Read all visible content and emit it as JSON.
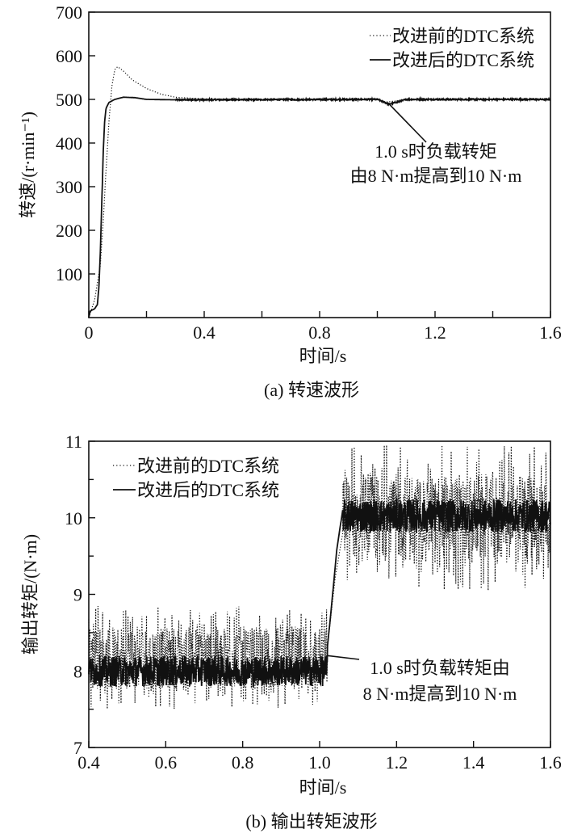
{
  "chart_data": [
    {
      "type": "line",
      "caption": "(a) 转速波形",
      "xlabel": "时间/s",
      "ylabel": "转速/(r·min⁻¹)",
      "xlim": [
        0,
        1.6
      ],
      "ylim": [
        0,
        700
      ],
      "xticks": [
        "0",
        "0.4",
        "0.8",
        "1.2",
        "1.6"
      ],
      "xtick_values": [
        0,
        0.4,
        0.8,
        1.2,
        1.6
      ],
      "yticks": [
        "100",
        "200",
        "300",
        "400",
        "500",
        "600",
        "700"
      ],
      "ytick_values": [
        100,
        200,
        300,
        400,
        500,
        600,
        700
      ],
      "legend_position": "top-right",
      "series": [
        {
          "name": "改进前的DTC系统",
          "style": "dotted",
          "x": [
            0,
            0.02,
            0.04,
            0.05,
            0.06,
            0.07,
            0.08,
            0.09,
            0.1,
            0.12,
            0.15,
            0.2,
            0.25,
            0.3,
            0.4,
            1.0,
            1.03,
            1.06,
            1.1,
            1.6
          ],
          "y": [
            0,
            40,
            120,
            220,
            340,
            450,
            530,
            568,
            575,
            565,
            545,
            525,
            512,
            505,
            501,
            500,
            494,
            496,
            500,
            500
          ]
        },
        {
          "name": "改进后的DTC系统",
          "style": "solid",
          "x": [
            0,
            0.005,
            0.02,
            0.03,
            0.035,
            0.04,
            0.045,
            0.05,
            0.055,
            0.06,
            0.07,
            0.09,
            0.12,
            0.16,
            0.2,
            0.3,
            1.0,
            1.02,
            1.04,
            1.07,
            1.1,
            1.6
          ],
          "y": [
            0,
            15,
            20,
            30,
            70,
            150,
            260,
            380,
            450,
            480,
            493,
            500,
            505,
            504,
            500,
            499,
            500,
            495,
            489,
            494,
            500,
            500
          ]
        }
      ],
      "annotation": {
        "lines": [
          "1.0 s时负载转矩",
          "由8 N·m提高到10 N·m"
        ],
        "points_to": [
          1.04,
          490
        ]
      }
    },
    {
      "type": "line",
      "caption": "(b) 输出转矩波形",
      "xlabel": "时间/s",
      "ylabel": "输出转矩/(N·m)",
      "xlim": [
        0.4,
        1.6
      ],
      "ylim": [
        7,
        11
      ],
      "xticks": [
        "0.4",
        "0.6",
        "0.8",
        "1.0",
        "1.2",
        "1.4",
        "1.6"
      ],
      "xtick_values": [
        0.4,
        0.6,
        0.8,
        1.0,
        1.2,
        1.4,
        1.6
      ],
      "yticks": [
        "7",
        "8",
        "9",
        "10",
        "11"
      ],
      "ytick_values": [
        7,
        8,
        9,
        10,
        11
      ],
      "legend_position": "top-left",
      "series": [
        {
          "name": "改进前的DTC系统",
          "style": "dotted",
          "x": [
            0.4,
            1.0,
            1.02,
            1.04,
            1.06,
            1.1,
            1.6
          ],
          "y": [
            8.0,
            8.0,
            8.3,
            9.2,
            9.8,
            9.8,
            9.75
          ],
          "noise_range": {
            "before_step": [
              7.5,
              8.85
            ],
            "after_step": [
              9.05,
              10.95
            ]
          }
        },
        {
          "name": "改进后的DTC系统",
          "style": "solid",
          "x": [
            0.4,
            1.015,
            1.03,
            1.045,
            1.06,
            1.08,
            1.6
          ],
          "y": [
            8.0,
            8.05,
            8.8,
            9.6,
            10.1,
            10.05,
            10.0
          ],
          "noise_range": {
            "before_step": [
              7.75,
              8.25
            ],
            "after_step": [
              9.75,
              10.3
            ]
          }
        }
      ],
      "annotation": {
        "lines": [
          "1.0 s时负载转矩由",
          "8 N·m提高到10 N·m"
        ],
        "points_to": [
          1.02,
          8.2
        ]
      }
    }
  ]
}
